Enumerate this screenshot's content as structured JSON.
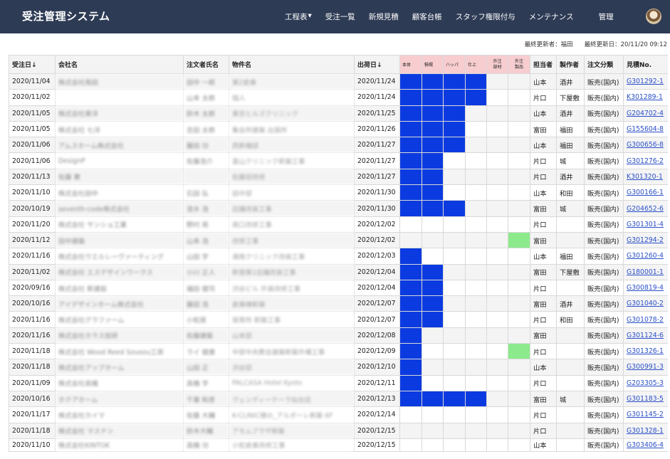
{
  "app": {
    "title": "受注管理システム",
    "nav": [
      {
        "label": "工程表",
        "dropdown": true
      },
      {
        "label": "受注一覧",
        "dropdown": false
      },
      {
        "label": "新規見積",
        "dropdown": false
      },
      {
        "label": "顧客台帳",
        "dropdown": false
      },
      {
        "label": "スタッフ権限付与",
        "dropdown": false
      },
      {
        "label": "メンテナンス",
        "dropdown": false
      },
      {
        "label": "管理",
        "dropdown": false
      }
    ]
  },
  "meta": {
    "last_editor": "最終更新者：福田",
    "last_updated": "最終更新日：20/11/20 09:12"
  },
  "table": {
    "headers": [
      "受注日↓",
      "会社名",
      "注文者氏名",
      "物件名",
      "出荷日↓",
      "本体",
      "積幌",
      "ハッパ",
      "仕上",
      "外注\n部材",
      "外注\n製品",
      "担当者",
      "製作者",
      "注文分類",
      "見積No."
    ],
    "rows": [
      {
        "order_date": "2020/11/04",
        "company": "株式会社南田",
        "orderer": "田中 一郎",
        "property": "第2倉庫",
        "ship_date": "2020/11/24",
        "steps": [
          1,
          1,
          1,
          1,
          0,
          0
        ],
        "rep": "山本",
        "maker": "酒井",
        "type": "販売(国内)",
        "quote": "G301292-1"
      },
      {
        "order_date": "2020/11/02",
        "company": "",
        "orderer": "山本 太郎",
        "property": "個人",
        "ship_date": "2020/11/24",
        "steps": [
          1,
          1,
          1,
          1,
          0,
          0
        ],
        "rep": "片口",
        "maker": "下屋敷",
        "type": "販売(国内)",
        "quote": "K301289-1"
      },
      {
        "order_date": "2020/11/05",
        "company": "株式会社東洋",
        "orderer": "鈴木 太郎",
        "property": "東京ヒルズクリニック",
        "ship_date": "2020/11/25",
        "steps": [
          1,
          1,
          1,
          0,
          0,
          0
        ],
        "rep": "山本",
        "maker": "酒井",
        "type": "販売(国内)",
        "quote": "G204702-4"
      },
      {
        "order_date": "2020/11/05",
        "company": "株式会社 七洋",
        "orderer": "吉田 太郎",
        "property": "集会所建築 出張所",
        "ship_date": "2020/11/26",
        "steps": [
          1,
          1,
          1,
          0,
          0,
          0
        ],
        "rep": "富田",
        "maker": "福田",
        "type": "販売(国内)",
        "quote": "G155604-8"
      },
      {
        "order_date": "2020/11/06",
        "company": "アムスホーム株式会社",
        "orderer": "藤田 功",
        "property": "西新橋邸",
        "ship_date": "2020/11/27",
        "steps": [
          1,
          1,
          1,
          0,
          0,
          0
        ],
        "rep": "山本",
        "maker": "福田",
        "type": "販売(国内)",
        "quote": "G300656-8"
      },
      {
        "order_date": "2020/11/06",
        "company": "DesignP",
        "orderer": "佐藤浩介",
        "property": "富山クリニック新築工事",
        "ship_date": "2020/11/27",
        "steps": [
          1,
          1,
          0,
          0,
          0,
          0
        ],
        "rep": "片口",
        "maker": "城",
        "type": "販売(国内)",
        "quote": "G301276-2"
      },
      {
        "order_date": "2020/11/13",
        "company": "佐藤 實",
        "orderer": "",
        "property": "佐藤邸改修",
        "ship_date": "2020/11/27",
        "steps": [
          1,
          1,
          0,
          0,
          0,
          0
        ],
        "rep": "片口",
        "maker": "酒井",
        "type": "販売(国内)",
        "quote": "K301320-1"
      },
      {
        "order_date": "2020/11/10",
        "company": "株式会社田中",
        "orderer": "石田 弘",
        "property": "田中邸",
        "ship_date": "2020/11/30",
        "steps": [
          1,
          1,
          0,
          0,
          0,
          0
        ],
        "rep": "山本",
        "maker": "和田",
        "type": "販売(国内)",
        "quote": "G300166-1"
      },
      {
        "order_date": "2020/10/19",
        "company": "seventh-code株式会社",
        "orderer": "清水 浩",
        "property": "店舗改装工事",
        "ship_date": "2020/11/30",
        "steps": [
          1,
          1,
          1,
          0,
          0,
          0
        ],
        "rep": "富田",
        "maker": "城",
        "type": "販売(国内)",
        "quote": "G204652-6"
      },
      {
        "order_date": "2020/11/20",
        "company": "株式会社 サンショ工業",
        "orderer": "野村 晃",
        "property": "南口改修工事",
        "ship_date": "2020/12/02",
        "steps": [
          0,
          0,
          0,
          0,
          0,
          0
        ],
        "rep": "片口",
        "maker": "",
        "type": "販売(国内)",
        "quote": "G301301-4"
      },
      {
        "order_date": "2020/11/12",
        "company": "田中建築",
        "orderer": "山本 浩",
        "property": "改修工事",
        "ship_date": "2020/12/02",
        "steps": [
          0,
          0,
          0,
          0,
          0,
          2
        ],
        "rep": "富田",
        "maker": "",
        "type": "販売(国内)",
        "quote": "G301294-2"
      },
      {
        "order_date": "2020/11/16",
        "company": "株式会社ウエルレーヴァーティング",
        "orderer": "山田 学",
        "property": "湘南クリニック改装工事",
        "ship_date": "2020/12/03",
        "steps": [
          1,
          0,
          0,
          0,
          0,
          0
        ],
        "rep": "山本",
        "maker": "福田",
        "type": "販売(国内)",
        "quote": "G301260-4"
      },
      {
        "order_date": "2020/11/02",
        "company": "株式会社 エスデザインワークス",
        "orderer": "小川 正人",
        "property": "新宿第1店舗改装工事",
        "ship_date": "2020/12/04",
        "steps": [
          1,
          1,
          0,
          0,
          0,
          0
        ],
        "rep": "富田",
        "maker": "下屋敷",
        "type": "販売(国内)",
        "quote": "G180001-1"
      },
      {
        "order_date": "2020/09/16",
        "company": "株式会社 新建設",
        "orderer": "福田 健司",
        "property": "渋谷ビル 外装改修工事",
        "ship_date": "2020/12/04",
        "steps": [
          1,
          1,
          0,
          0,
          0,
          0
        ],
        "rep": "片口",
        "maker": "",
        "type": "販売(国内)",
        "quote": "G300819-4"
      },
      {
        "order_date": "2020/10/16",
        "company": "アイデザインホーム株式会社",
        "orderer": "藤田 浩",
        "property": "倉庫棟新築",
        "ship_date": "2020/12/07",
        "steps": [
          1,
          1,
          0,
          0,
          0,
          0
        ],
        "rep": "富田",
        "maker": "酒井",
        "type": "販売(国内)",
        "quote": "G301040-2"
      },
      {
        "order_date": "2020/11/16",
        "company": "株式会社グラファーム",
        "orderer": "小松原",
        "property": "保育所 新築工事",
        "ship_date": "2020/12/07",
        "steps": [
          1,
          1,
          0,
          0,
          0,
          0
        ],
        "rep": "片口",
        "maker": "和田",
        "type": "販売(国内)",
        "quote": "G301078-2"
      },
      {
        "order_date": "2020/11/16",
        "company": "株式会社カラス技研",
        "orderer": "佐藤建築",
        "property": "山本邸",
        "ship_date": "2020/12/08",
        "steps": [
          1,
          0,
          0,
          0,
          0,
          0
        ],
        "rep": "富田",
        "maker": "",
        "type": "販売(国内)",
        "quote": "G301124-6"
      },
      {
        "order_date": "2020/11/18",
        "company": "株式会社 Wood Reed Sousou工房",
        "orderer": "ライ 健康",
        "property": "中部中央教会建築新築外構工事",
        "ship_date": "2020/12/09",
        "steps": [
          1,
          0,
          0,
          0,
          0,
          2
        ],
        "rep": "片口",
        "maker": "",
        "type": "販売(国内)",
        "quote": "G301326-1"
      },
      {
        "order_date": "2020/11/18",
        "company": "株式会社アップホーム",
        "orderer": "山田 正",
        "property": "渋谷邸",
        "ship_date": "2020/12/10",
        "steps": [
          1,
          0,
          0,
          0,
          0,
          0
        ],
        "rep": "山本",
        "maker": "",
        "type": "販売(国内)",
        "quote": "G300991-3"
      },
      {
        "order_date": "2020/11/09",
        "company": "株式会社高橋",
        "orderer": "高橋 学",
        "property": "PALCASA Hotel Kyoto",
        "ship_date": "2020/12/11",
        "steps": [
          1,
          0,
          0,
          0,
          0,
          0
        ],
        "rep": "片口",
        "maker": "",
        "type": "販売(国内)",
        "quote": "G203305-3"
      },
      {
        "order_date": "2020/10/16",
        "company": "ホクアホーム",
        "orderer": "千葉 和彦",
        "property": "ヴェンディーテーラ仙台店",
        "ship_date": "2020/12/13",
        "steps": [
          1,
          1,
          1,
          1,
          0,
          0
        ],
        "rep": "富田",
        "maker": "城",
        "type": "販売(国内)",
        "quote": "G301183-5"
      },
      {
        "order_date": "2020/11/17",
        "company": "株式会社カイマ",
        "orderer": "佐藤 大輔",
        "property": "K-CLINIC様の_アルボーレ新築 6F",
        "ship_date": "2020/12/14",
        "steps": [
          0,
          0,
          0,
          0,
          0,
          0
        ],
        "rep": "片口",
        "maker": "",
        "type": "販売(国内)",
        "quote": "G301145-2"
      },
      {
        "order_date": "2020/11/18",
        "company": "株式会社 マスナン",
        "orderer": "鈴木大輔",
        "property": "アモムブラザ新築",
        "ship_date": "2020/12/15",
        "steps": [
          0,
          0,
          0,
          0,
          0,
          0
        ],
        "rep": "片口",
        "maker": "",
        "type": "販売(国内)",
        "quote": "G301328-1"
      },
      {
        "order_date": "2020/11/10",
        "company": "株式会社KINTOK",
        "orderer": "高橋 功",
        "property": "小松倉庫改修工事",
        "ship_date": "2020/12/15",
        "steps": [
          0,
          0,
          0,
          0,
          0,
          0
        ],
        "rep": "山本",
        "maker": "",
        "type": "販売(国内)",
        "quote": "G303406-4"
      }
    ]
  }
}
